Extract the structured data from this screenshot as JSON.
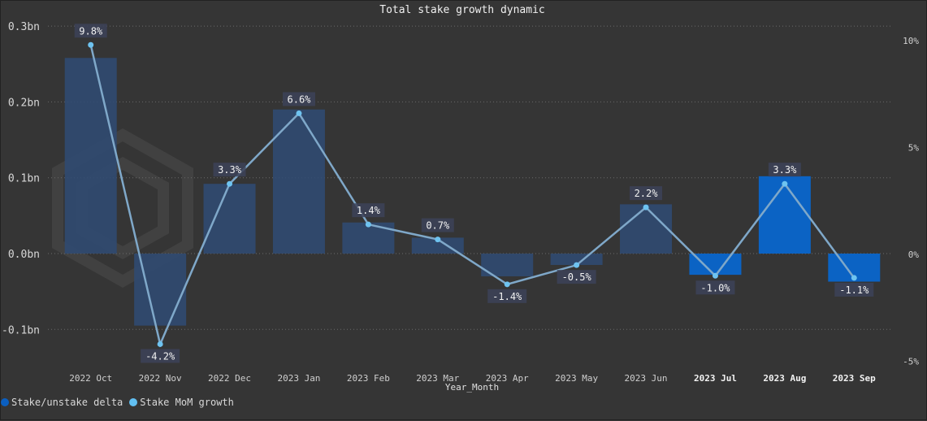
{
  "chart_data": {
    "type": "bar",
    "title": "Total stake growth dynamic",
    "xlabel": "Year_Month",
    "categories": [
      "2022 Oct",
      "2022 Nov",
      "2022 Dec",
      "2023 Jan",
      "2023 Feb",
      "2023 Mar",
      "2023 Apr",
      "2023 May",
      "2023 Jun",
      "2023 Jul",
      "2023 Aug",
      "2023 Sep"
    ],
    "highlighted_categories": [
      "2023 Jul",
      "2023 Aug",
      "2023 Sep"
    ],
    "y_ticks": [
      "0.3bn",
      "0.2bn",
      "0.1bn",
      "0.0bn",
      "-0.1bn"
    ],
    "y_tick_values": [
      0.3,
      0.2,
      0.1,
      0.0,
      -0.1
    ],
    "y2_ticks": [
      "10%",
      "5%",
      "0%",
      "-5%"
    ],
    "y2_tick_values": [
      10,
      5,
      0,
      -5
    ],
    "ylim": [
      -0.13,
      0.3
    ],
    "y2lim": [
      -5,
      10
    ],
    "series": [
      {
        "name": "Stake/unstake delta",
        "kind": "bar",
        "axis": "left",
        "values": [
          0.258,
          -0.095,
          0.092,
          0.19,
          0.041,
          0.021,
          -0.03,
          -0.015,
          0.065,
          -0.028,
          0.102,
          -0.037
        ]
      },
      {
        "name": "Stake MoM growth",
        "kind": "line",
        "axis": "right",
        "values": [
          9.8,
          -4.2,
          3.3,
          6.6,
          1.4,
          0.7,
          -1.4,
          -0.5,
          2.2,
          -1.0,
          3.3,
          -1.1
        ],
        "labels": [
          "9.8%",
          "-4.2%",
          "3.3%",
          "6.6%",
          "1.4%",
          "0.7%",
          "-1.4%",
          "-0.5%",
          "2.2%",
          "-1.0%",
          "3.3%",
          "-1.1%"
        ]
      }
    ],
    "colors": {
      "bar_muted": "#2f4b74",
      "bar_highlight": "#0b63c4",
      "line": "#7fa8c9",
      "marker": "#6ec3f0",
      "legend_bar": "#0b5fc0",
      "legend_line": "#62c0f2",
      "label_bg": "#3c4258"
    },
    "grid": true,
    "legend_position": "bottom-left"
  }
}
